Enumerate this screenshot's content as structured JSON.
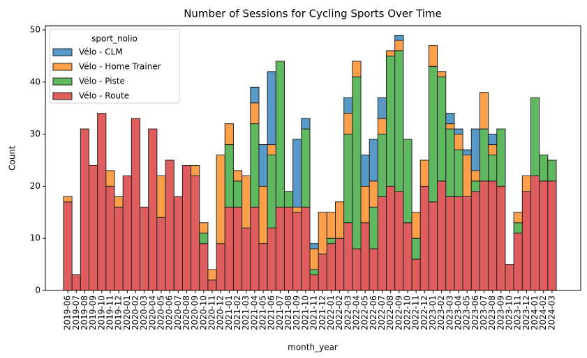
{
  "chart_data": {
    "type": "stacked_bar",
    "title": "Number of Sessions for Cycling Sports Over Time",
    "xlabel": "month_year",
    "ylabel": "Count",
    "legend_title": "sport_nolio",
    "legend_position": "upper left",
    "categories": [
      "2019-06",
      "2019-07",
      "2019-08",
      "2019-09",
      "2019-10",
      "2019-11",
      "2019-12",
      "2020-01",
      "2020-02",
      "2020-03",
      "2020-04",
      "2020-05",
      "2020-06",
      "2020-07",
      "2020-08",
      "2020-09",
      "2020-10",
      "2020-11",
      "2020-12",
      "2021-01",
      "2021-02",
      "2021-03",
      "2021-04",
      "2021-05",
      "2021-06",
      "2021-07",
      "2021-08",
      "2021-09",
      "2021-10",
      "2021-11",
      "2021-12",
      "2022-01",
      "2022-02",
      "2022-03",
      "2022-04",
      "2022-05",
      "2022-06",
      "2022-07",
      "2022-08",
      "2022-09",
      "2022-10",
      "2022-11",
      "2022-12",
      "2023-01",
      "2023-02",
      "2023-03",
      "2023-04",
      "2023-05",
      "2023-06",
      "2023-07",
      "2023-08",
      "2023-09",
      "2023-10",
      "2023-11",
      "2023-12",
      "2024-01",
      "2024-02",
      "2024-03"
    ],
    "series": [
      {
        "name": "Vélo - CLM",
        "color": "#5799c7",
        "values": [
          0,
          0,
          0,
          0,
          0,
          0,
          0,
          0,
          0,
          0,
          0,
          0,
          0,
          0,
          0,
          0,
          0,
          0,
          0,
          0,
          0,
          0,
          3,
          8,
          14,
          0,
          0,
          13,
          2,
          1,
          0,
          0,
          0,
          3,
          0,
          6,
          8,
          4,
          0,
          1,
          0,
          0,
          0,
          0,
          0,
          2,
          1,
          1,
          8,
          0,
          2,
          0,
          0,
          0,
          0,
          0,
          0,
          0
        ]
      },
      {
        "name": "Vélo - Home Trainer",
        "color": "#ff9f4a",
        "values": [
          1,
          0,
          0,
          0,
          0,
          3,
          2,
          0,
          0,
          0,
          0,
          8,
          0,
          0,
          0,
          2,
          2,
          2,
          17,
          4,
          2,
          10,
          4,
          11,
          2,
          0,
          0,
          1,
          0,
          4,
          8,
          5,
          7,
          4,
          3,
          7,
          5,
          3,
          1,
          2,
          0,
          5,
          5,
          4,
          1,
          1,
          3,
          8,
          2,
          7,
          2,
          0,
          0,
          2,
          3,
          0,
          0,
          0
        ]
      },
      {
        "name": "Vélo - Piste",
        "color": "#60b860",
        "values": [
          0,
          0,
          0,
          0,
          0,
          0,
          0,
          0,
          0,
          0,
          0,
          0,
          0,
          0,
          0,
          0,
          2,
          0,
          0,
          12,
          5,
          0,
          16,
          0,
          14,
          28,
          3,
          0,
          15,
          1,
          0,
          1,
          0,
          17,
          33,
          0,
          8,
          12,
          25,
          27,
          16,
          4,
          0,
          26,
          20,
          13,
          9,
          0,
          2,
          10,
          5,
          11,
          0,
          2,
          0,
          15,
          5,
          4
        ]
      },
      {
        "name": "Vélo - Route",
        "color": "#e05d5e",
        "values": [
          17,
          3,
          31,
          24,
          34,
          20,
          16,
          22,
          33,
          16,
          31,
          14,
          25,
          18,
          24,
          22,
          9,
          2,
          9,
          16,
          16,
          12,
          16,
          9,
          12,
          16,
          16,
          15,
          16,
          3,
          7,
          9,
          10,
          13,
          8,
          13,
          8,
          18,
          20,
          19,
          13,
          6,
          20,
          17,
          21,
          18,
          18,
          18,
          19,
          21,
          21,
          20,
          5,
          11,
          19,
          22,
          21,
          21
        ]
      }
    ],
    "ylim": [
      0,
      50.8
    ],
    "yticks": [
      0,
      10,
      20,
      30,
      40,
      50
    ]
  }
}
